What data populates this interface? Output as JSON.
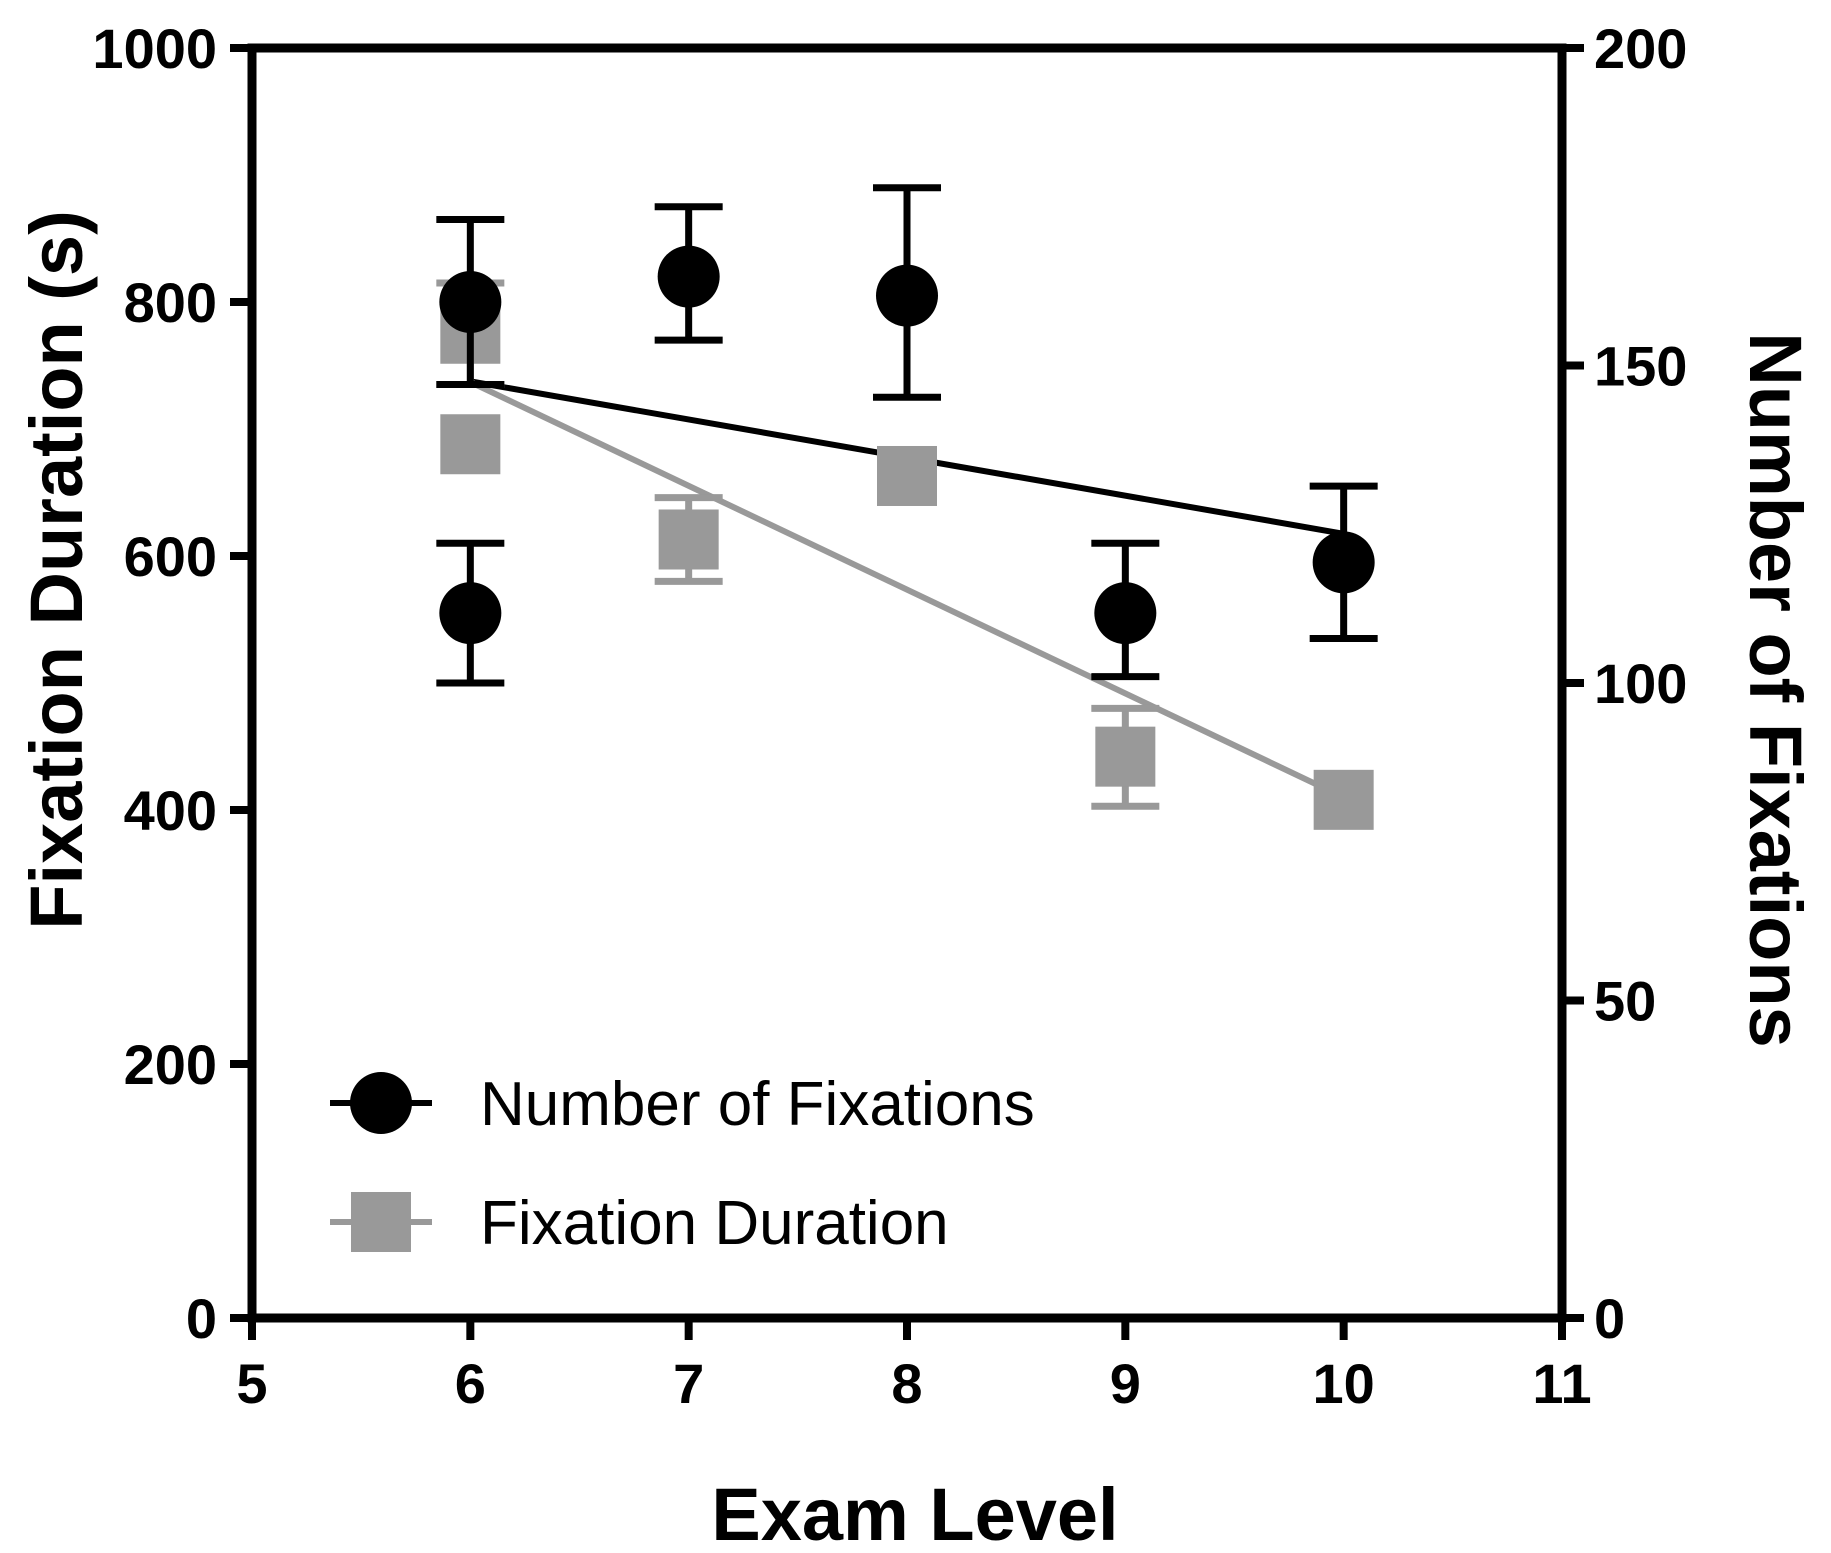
{
  "chart_data": {
    "type": "scatter",
    "xlabel": "Exam Level",
    "ylabel_left": "Fixation Duration (s)",
    "ylabel_right": "Number of Fixations",
    "xlim": [
      5,
      11
    ],
    "ylim_left": [
      0,
      1000
    ],
    "ylim_right": [
      0,
      200
    ],
    "x_ticks": [
      "5",
      "6",
      "7",
      "8",
      "9",
      "10",
      "11"
    ],
    "y_ticks_left": [
      "0",
      "200",
      "400",
      "600",
      "800",
      "1000"
    ],
    "y_ticks_right": [
      "0",
      "50",
      "100",
      "150",
      "200"
    ],
    "legend_position": "bottom-left",
    "grid": false,
    "series": [
      {
        "name": "Number of Fixations",
        "axis": "right",
        "marker": "circle",
        "color": "#000000",
        "points": [
          {
            "x": 6,
            "y": 160,
            "err_low": 147,
            "err_high": 173
          },
          {
            "x": 6,
            "y": 111,
            "err_low": 100,
            "err_high": 122
          },
          {
            "x": 7,
            "y": 164,
            "err_low": 154,
            "err_high": 175
          },
          {
            "x": 8,
            "y": 161,
            "err_low": 145,
            "err_high": 178
          },
          {
            "x": 9,
            "y": 111,
            "err_low": 101,
            "err_high": 122
          },
          {
            "x": 10,
            "y": 119,
            "err_low": 107,
            "err_high": 131
          }
        ],
        "fit": {
          "x": [
            6,
            10
          ],
          "y": [
            147.5,
            123.5
          ]
        }
      },
      {
        "name": "Fixation Duration",
        "axis": "left",
        "marker": "square",
        "color": "#999999",
        "points": [
          {
            "x": 6,
            "y": 775,
            "err_low": 735,
            "err_high": 815
          },
          {
            "x": 6,
            "y": 688,
            "err_low": 688,
            "err_high": 688
          },
          {
            "x": 7,
            "y": 613,
            "err_low": 580,
            "err_high": 646
          },
          {
            "x": 8,
            "y": 663,
            "err_low": 663,
            "err_high": 663
          },
          {
            "x": 9,
            "y": 442,
            "err_low": 403,
            "err_high": 480
          },
          {
            "x": 10,
            "y": 408,
            "err_low": 408,
            "err_high": 408
          }
        ],
        "fit": {
          "x": [
            6,
            10
          ],
          "y": [
            737,
            410
          ]
        }
      }
    ]
  }
}
